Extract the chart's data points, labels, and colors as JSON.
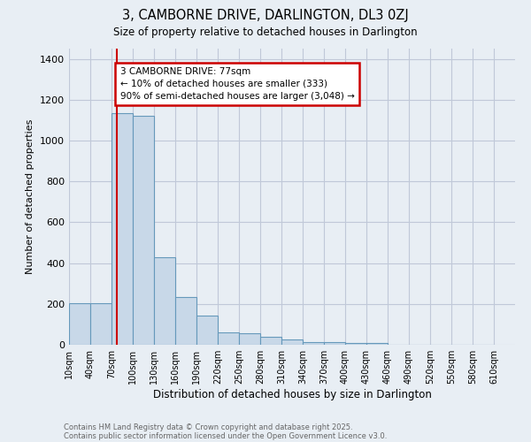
{
  "title1": "3, CAMBORNE DRIVE, DARLINGTON, DL3 0ZJ",
  "title2": "Size of property relative to detached houses in Darlington",
  "xlabel": "Distribution of detached houses by size in Darlington",
  "ylabel": "Number of detached properties",
  "bin_starts": [
    10,
    40,
    70,
    100,
    130,
    160,
    190,
    220,
    250,
    280,
    310,
    340,
    370,
    400,
    430,
    460,
    490,
    520,
    550,
    580
  ],
  "bin_width": 30,
  "bar_heights": [
    205,
    205,
    1135,
    1120,
    430,
    235,
    145,
    60,
    55,
    40,
    25,
    12,
    12,
    7,
    8,
    0,
    0,
    0,
    0,
    0
  ],
  "bar_color": "#c8d8e8",
  "bar_edge_color": "#6699bb",
  "grid_color": "#c0c8d8",
  "background_color": "#e8eef4",
  "red_line_x": 77,
  "red_line_color": "#cc0000",
  "annotation_line1": "3 CAMBORNE DRIVE: 77sqm",
  "annotation_line2": "← 10% of detached houses are smaller (333)",
  "annotation_line3": "90% of semi-detached houses are larger (3,048) →",
  "annotation_box_color": "white",
  "annotation_box_edge": "#cc0000",
  "ylim": [
    0,
    1450
  ],
  "xlim_min": 10,
  "xlim_max": 640,
  "tick_labels": [
    "10sqm",
    "40sqm",
    "70sqm",
    "100sqm",
    "130sqm",
    "160sqm",
    "190sqm",
    "220sqm",
    "250sqm",
    "280sqm",
    "310sqm",
    "340sqm",
    "370sqm",
    "400sqm",
    "430sqm",
    "460sqm",
    "490sqm",
    "520sqm",
    "550sqm",
    "580sqm",
    "610sqm"
  ],
  "tick_positions": [
    10,
    40,
    70,
    100,
    130,
    160,
    190,
    220,
    250,
    280,
    310,
    340,
    370,
    400,
    430,
    460,
    490,
    520,
    550,
    580,
    610
  ],
  "footnote1": "Contains HM Land Registry data © Crown copyright and database right 2025.",
  "footnote2": "Contains public sector information licensed under the Open Government Licence v3.0."
}
